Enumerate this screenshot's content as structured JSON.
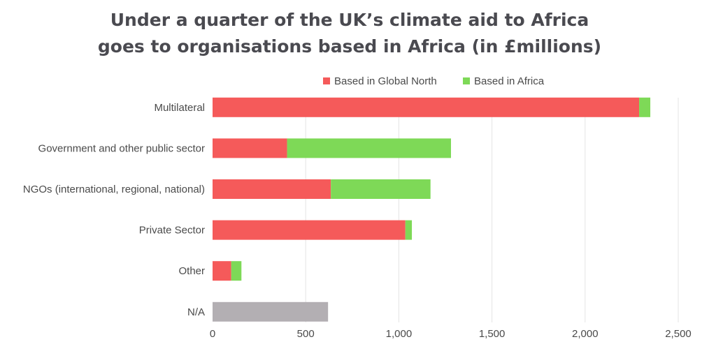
{
  "title_lines": [
    "Under a quarter of the UK’s climate aid to Africa",
    "goes to organisations based in Africa (in £millions)"
  ],
  "colors": {
    "global_north": "#f55a5a",
    "africa": "#7ed957",
    "na": "#b3afb3",
    "grid": "#e4e4e4"
  },
  "chart_data": {
    "type": "bar",
    "orientation": "horizontal",
    "stacked": true,
    "title": "Under a quarter of the UK’s climate aid to Africa goes to organisations based in Africa (in £millions)",
    "categories": [
      "Multilateral",
      "Government and other public sector",
      "NGOs (international, regional, national)",
      "Private Sector",
      "Other",
      "N/A"
    ],
    "series": [
      {
        "name": "Based in Global North",
        "color": "#f55a5a",
        "values": [
          2290,
          400,
          635,
          1035,
          100,
          null
        ]
      },
      {
        "name": "Based in Africa",
        "color": "#7ed957",
        "values": [
          60,
          880,
          535,
          35,
          55,
          null
        ]
      },
      {
        "name": "",
        "color": "#b3afb3",
        "values": [
          null,
          null,
          null,
          null,
          null,
          620
        ]
      }
    ],
    "xlim": [
      0,
      2500
    ],
    "xticks": [
      0,
      500,
      1000,
      1500,
      2000,
      2500
    ],
    "xtick_labels": [
      "0",
      "500",
      "1,000",
      "1,500",
      "2,000",
      "2,500"
    ],
    "grid": "vertical",
    "legend": "top-center"
  }
}
